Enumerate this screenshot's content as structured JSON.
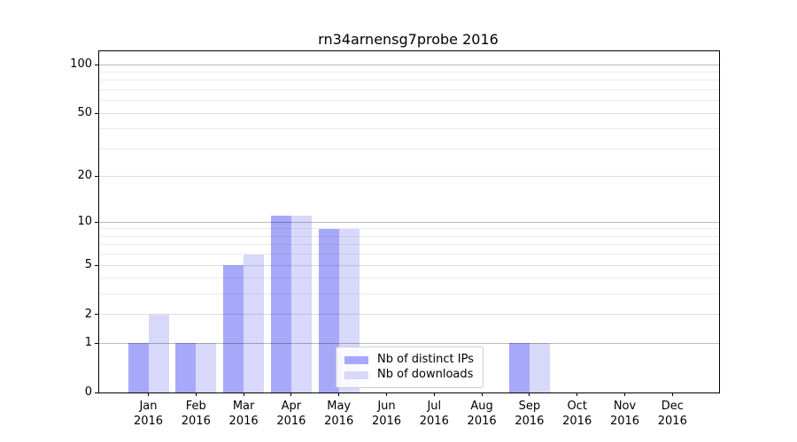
{
  "title": "rn34arnensg7probe 2016",
  "chart_data": {
    "type": "bar",
    "title": "rn34arnensg7probe 2016",
    "categories": [
      "Jan 2016",
      "Feb 2016",
      "Mar 2016",
      "Apr 2016",
      "May 2016",
      "Jun 2016",
      "Jul 2016",
      "Aug 2016",
      "Sep 2016",
      "Oct 2016",
      "Nov 2016",
      "Dec 2016"
    ],
    "series": [
      {
        "name": "Nb of distinct IPs",
        "color": "#a8a8fa",
        "values": [
          1,
          1,
          5,
          11,
          9,
          0,
          0,
          0,
          1,
          0,
          0,
          0
        ]
      },
      {
        "name": "Nb of downloads",
        "color": "#d8d8fa",
        "values": [
          2,
          1,
          6,
          11,
          9,
          0,
          0,
          0,
          1,
          0,
          0,
          0
        ]
      }
    ],
    "xlabel": "",
    "ylabel": "",
    "yscale": "log1p",
    "ylim": [
      0,
      121
    ],
    "yticks": [
      0,
      1,
      2,
      5,
      10,
      20,
      50,
      100
    ],
    "yticks_decade": [
      1,
      10,
      100
    ],
    "yticks_minor": [
      3,
      4,
      6,
      7,
      8,
      9,
      30,
      40,
      60,
      70,
      80,
      90
    ],
    "grid": "horizontal",
    "legend_position": "lower-center-inside"
  },
  "colors": {
    "bar_distinct_ips": "#a8a8fa",
    "bar_downloads": "#d8d8fa",
    "grid_decade": "rgba(0,0,0,0.27)",
    "grid_major": "rgba(0,0,0,0.13)",
    "grid_minor": "rgba(0,0,0,0.08)",
    "axis": "#000000",
    "legend_border": "#cccccc",
    "background": "#ffffff"
  }
}
